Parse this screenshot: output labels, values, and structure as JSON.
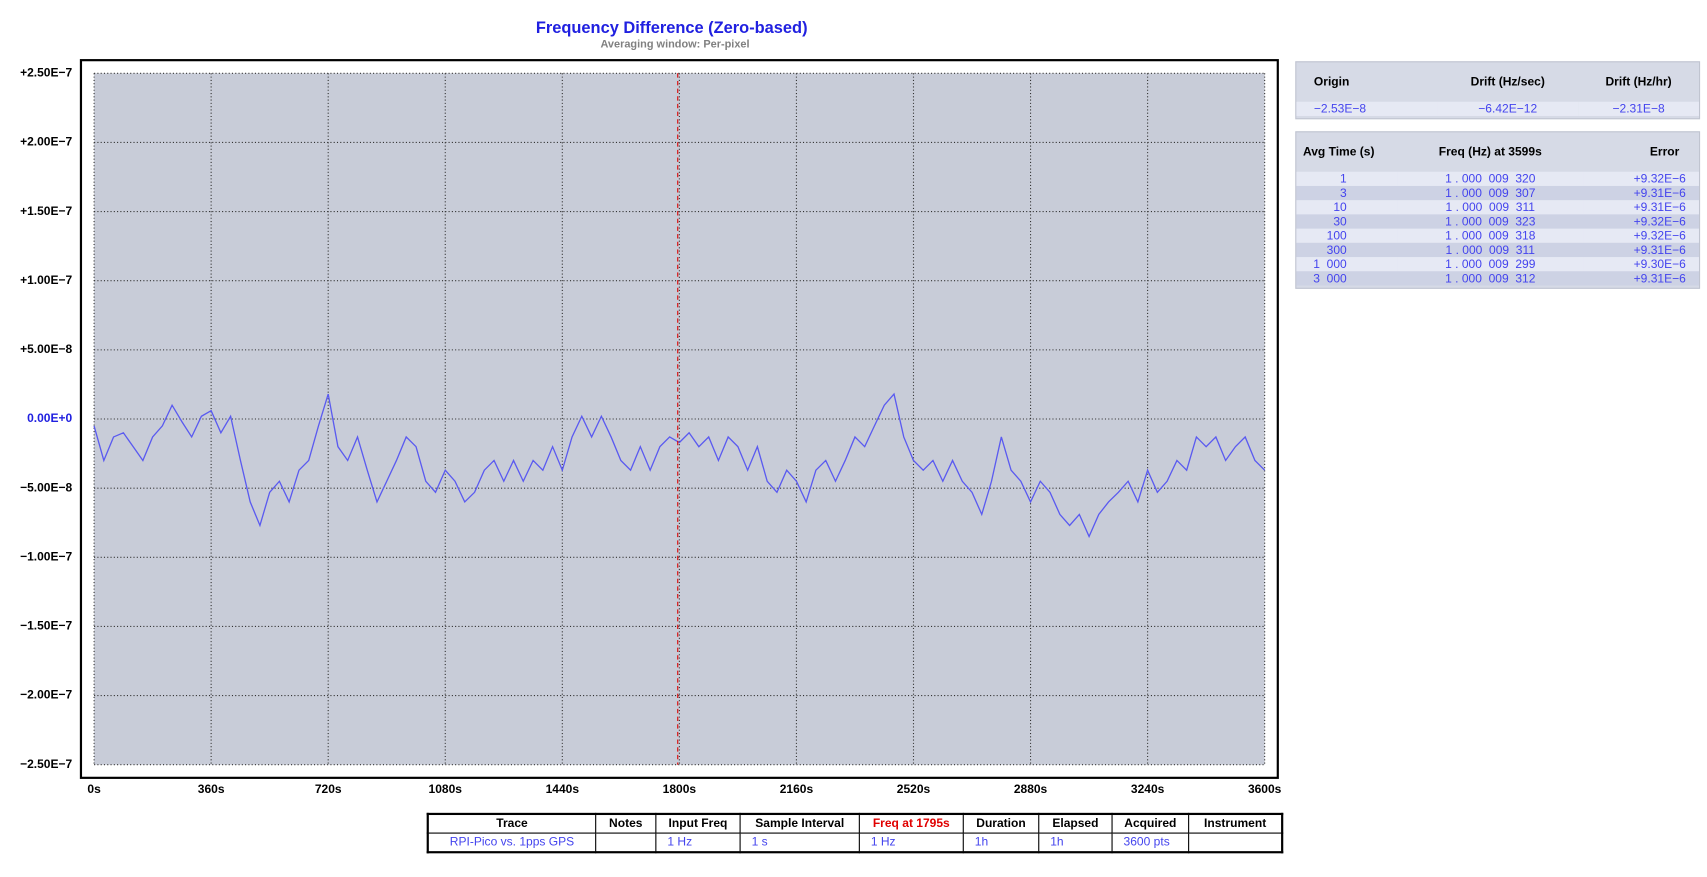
{
  "chart_data": {
    "type": "line",
    "title": "Frequency  Difference  (Zero-based)",
    "subtitle": "Averaging window: Per-pixel",
    "x": [
      0,
      30,
      60,
      90,
      120,
      150,
      180,
      210,
      240,
      270,
      300,
      330,
      360,
      390,
      420,
      450,
      480,
      510,
      540,
      570,
      600,
      630,
      660,
      690,
      720,
      750,
      780,
      810,
      840,
      870,
      900,
      930,
      960,
      990,
      1020,
      1050,
      1080,
      1110,
      1140,
      1170,
      1200,
      1230,
      1260,
      1290,
      1320,
      1350,
      1380,
      1410,
      1440,
      1470,
      1500,
      1530,
      1560,
      1590,
      1620,
      1650,
      1680,
      1710,
      1740,
      1770,
      1800,
      1830,
      1860,
      1890,
      1920,
      1950,
      1980,
      2010,
      2040,
      2070,
      2100,
      2130,
      2160,
      2190,
      2220,
      2250,
      2280,
      2310,
      2340,
      2370,
      2400,
      2430,
      2460,
      2490,
      2520,
      2550,
      2580,
      2610,
      2640,
      2670,
      2700,
      2730,
      2760,
      2790,
      2820,
      2850,
      2880,
      2910,
      2940,
      2970,
      3000,
      3030,
      3060,
      3090,
      3120,
      3150,
      3180,
      3210,
      3240,
      3270,
      3300,
      3330,
      3360,
      3390,
      3420,
      3450,
      3480,
      3510,
      3540,
      3570,
      3600
    ],
    "series": [
      {
        "color": "#5a5af0",
        "values": [
          -5e-09,
          -3e-08,
          -1.3e-08,
          -1e-08,
          -2e-08,
          -3e-08,
          -1.3e-08,
          -5e-09,
          1e-08,
          -2e-09,
          -1.3e-08,
          2e-09,
          6e-09,
          -1e-08,
          2e-09,
          -3e-08,
          -6e-08,
          -7.7e-08,
          -5.3e-08,
          -4.5e-08,
          -6e-08,
          -3.7e-08,
          -3e-08,
          -5e-09,
          1.8e-08,
          -2e-08,
          -3e-08,
          -1.3e-08,
          -3.7e-08,
          -6e-08,
          -4.5e-08,
          -3e-08,
          -1.3e-08,
          -2e-08,
          -4.5e-08,
          -5.3e-08,
          -3.7e-08,
          -4.5e-08,
          -6e-08,
          -5.3e-08,
          -3.7e-08,
          -3e-08,
          -4.5e-08,
          -3e-08,
          -4.5e-08,
          -3e-08,
          -3.7e-08,
          -2e-08,
          -3.7e-08,
          -1.3e-08,
          2e-09,
          -1.3e-08,
          2e-09,
          -1.3e-08,
          -3e-08,
          -3.7e-08,
          -2e-08,
          -3.7e-08,
          -2e-08,
          -1.3e-08,
          -1.7e-08,
          -1e-08,
          -2e-08,
          -1.3e-08,
          -3e-08,
          -1.3e-08,
          -2e-08,
          -3.7e-08,
          -2e-08,
          -4.5e-08,
          -5.3e-08,
          -3.7e-08,
          -4.5e-08,
          -6e-08,
          -3.7e-08,
          -3e-08,
          -4.5e-08,
          -3e-08,
          -1.3e-08,
          -2e-08,
          -5e-09,
          1e-08,
          1.8e-08,
          -1.3e-08,
          -3e-08,
          -3.7e-08,
          -3e-08,
          -4.5e-08,
          -3e-08,
          -4.5e-08,
          -5.3e-08,
          -6.9e-08,
          -4.5e-08,
          -1.3e-08,
          -3.7e-08,
          -4.5e-08,
          -6e-08,
          -4.5e-08,
          -5.3e-08,
          -6.9e-08,
          -7.7e-08,
          -6.9e-08,
          -8.5e-08,
          -6.9e-08,
          -6e-08,
          -5.3e-08,
          -4.5e-08,
          -6e-08,
          -3.7e-08,
          -5.3e-08,
          -4.5e-08,
          -3e-08,
          -3.7e-08,
          -1.3e-08,
          -2e-08,
          -1.3e-08,
          -3e-08,
          -2e-08,
          -1.3e-08,
          -3e-08,
          -3.7e-08
        ]
      }
    ],
    "xlim": [
      0,
      3600
    ],
    "xticks": [
      {
        "value": 0,
        "label": "0s"
      },
      {
        "value": 360,
        "label": "360s"
      },
      {
        "value": 720,
        "label": "720s"
      },
      {
        "value": 1080,
        "label": "1080s"
      },
      {
        "value": 1440,
        "label": "1440s"
      },
      {
        "value": 1800,
        "label": "1800s"
      },
      {
        "value": 2160,
        "label": "2160s"
      },
      {
        "value": 2520,
        "label": "2520s"
      },
      {
        "value": 2880,
        "label": "2880s"
      },
      {
        "value": 3240,
        "label": "3240s"
      },
      {
        "value": 3600,
        "label": "3600s"
      }
    ],
    "ylim": [
      -2.5e-07,
      2.5e-07
    ],
    "yticks": [
      {
        "value": 2.5e-07,
        "label": "+2.50E−7"
      },
      {
        "value": 2e-07,
        "label": "+2.00E−7"
      },
      {
        "value": 1.5e-07,
        "label": "+1.50E−7"
      },
      {
        "value": 1e-07,
        "label": "+1.00E−7"
      },
      {
        "value": 5e-08,
        "label": "+5.00E−8"
      },
      {
        "value": 0,
        "label": "0.00E+0"
      },
      {
        "value": -5e-08,
        "label": "−5.00E−8"
      },
      {
        "value": -1e-07,
        "label": "−1.00E−7"
      },
      {
        "value": -1.5e-07,
        "label": "−1.50E−7"
      },
      {
        "value": -2e-07,
        "label": "−2.00E−7"
      },
      {
        "value": -2.5e-07,
        "label": "−2.50E−7"
      }
    ],
    "grid": true,
    "cursor": 1795,
    "cursor_color": "#dd0000"
  },
  "drift_table": {
    "headers": [
      "Origin",
      "Drift (Hz/sec)",
      "Drift (Hz/hr)"
    ],
    "row": [
      "−2.53E−8",
      "−6.42E−12",
      "−2.31E−8"
    ]
  },
  "avg_table": {
    "headers": [
      "Avg Time (s)",
      "Freq (Hz) at 3599s",
      "Error"
    ],
    "rows": [
      [
        "1",
        "1 . 000  009  320",
        "+9.32E−6"
      ],
      [
        "3",
        "1 . 000  009  307",
        "+9.31E−6"
      ],
      [
        "10",
        "1 . 000  009  311",
        "+9.31E−6"
      ],
      [
        "30",
        "1 . 000  009  323",
        "+9.32E−6"
      ],
      [
        "100",
        "1 . 000  009  318",
        "+9.32E−6"
      ],
      [
        "300",
        "1 . 000  009  311",
        "+9.31E−6"
      ],
      [
        "1  000",
        "1 . 000  009  299",
        "+9.30E−6"
      ],
      [
        "3  000",
        "1 . 000  009  312",
        "+9.31E−6"
      ]
    ]
  },
  "info_table": {
    "headers": [
      "Trace",
      "Notes",
      "Input Freq",
      "Sample Interval",
      "Freq at 1795s",
      "Duration",
      "Elapsed",
      "Acquired",
      "Instrument"
    ],
    "row": [
      "RPI-Pico vs. 1pps GPS",
      "",
      "1 Hz",
      "1 s",
      "1 Hz",
      "1h",
      "1h",
      "3600 pts",
      ""
    ]
  }
}
